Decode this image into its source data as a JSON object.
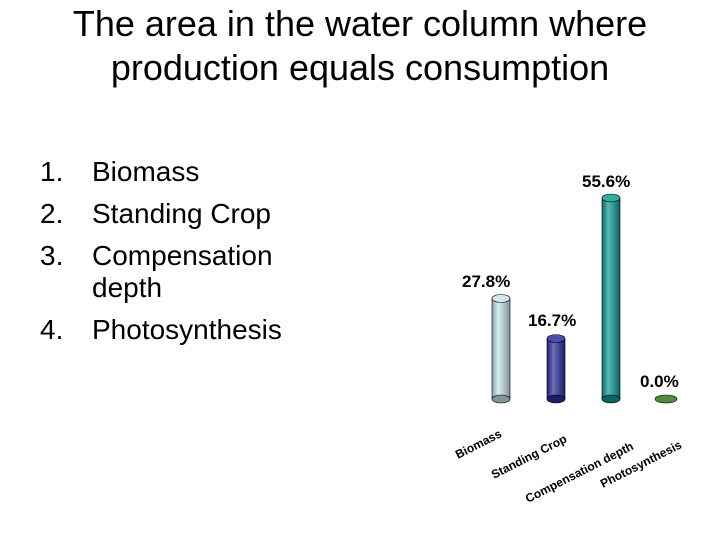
{
  "slide": {
    "title": "The area in the water column where production equals consumption",
    "options": [
      {
        "number": "1.",
        "text": "Biomass"
      },
      {
        "number": "2.",
        "text": "Standing Crop"
      },
      {
        "number": "3.",
        "text": "Compensation depth"
      },
      {
        "number": "4.",
        "text": "Photosynthesis"
      }
    ]
  },
  "chart_data": {
    "type": "bar",
    "categories": [
      "Biomass",
      "Standing Crop",
      "Compensation depth",
      "Photosynthesis"
    ],
    "values": [
      27.8,
      16.7,
      55.6,
      0.0
    ],
    "value_labels": [
      "27.8%",
      "16.7%",
      "55.6%",
      "0.0%"
    ],
    "colors": [
      "#c6e6ec",
      "#2d2e9e",
      "#0e9c95",
      "#4e8b3c"
    ],
    "ylim": [
      0,
      55.6
    ],
    "grid": false,
    "legend": "none"
  }
}
